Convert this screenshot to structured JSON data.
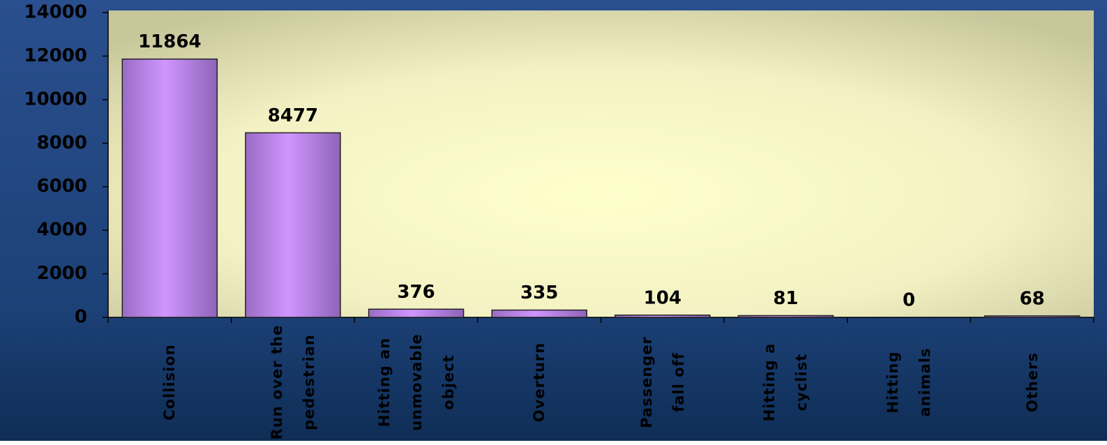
{
  "chart_data": {
    "type": "bar",
    "categories": [
      "Collision",
      "Run over the pedestrian",
      "Hitting an unmovable object",
      "Overturn",
      "Passenger fall off",
      "Hitting a cyclist",
      "Hitting animals",
      "Others"
    ],
    "values": [
      11864,
      8477,
      376,
      335,
      104,
      81,
      0,
      68
    ],
    "color": "#c88cf5",
    "ylim": [
      0,
      14000
    ],
    "yticks": [
      0,
      2000,
      4000,
      6000,
      8000,
      10000,
      12000,
      14000
    ],
    "grid": false
  }
}
